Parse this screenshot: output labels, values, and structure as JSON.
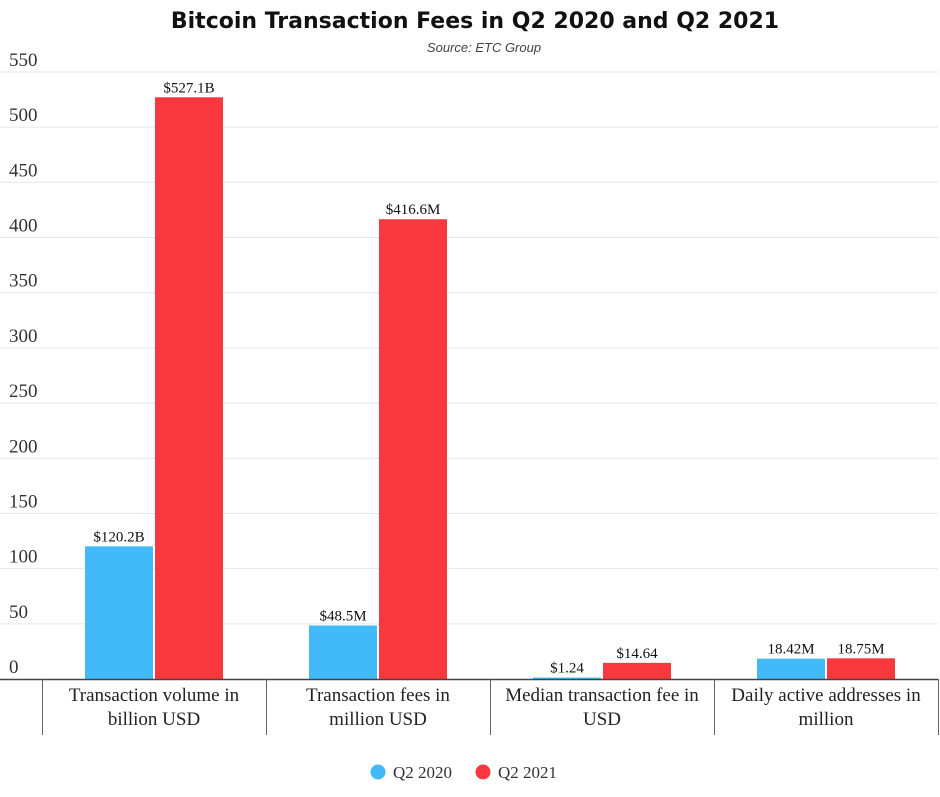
{
  "chart_data": {
    "type": "bar",
    "title": "Bitcoin Transaction Fees in Q2 2020 and Q2 2021",
    "subtitle": "Source: ETC Group",
    "categories": [
      [
        "Transaction volume in",
        "billion USD"
      ],
      [
        "Transaction fees in",
        "million USD"
      ],
      [
        "Median transaction fee in",
        "USD"
      ],
      [
        "Daily active addresses in",
        "million"
      ]
    ],
    "series": [
      {
        "name": "Q2 2020",
        "color": "#42baf8",
        "values": [
          120.2,
          48.5,
          1.24,
          18.42
        ],
        "labels": [
          "$120.2B",
          "$48.5M",
          "$1.24",
          "18.42M"
        ]
      },
      {
        "name": "Q2 2021",
        "color": "#f8383f",
        "values": [
          527.1,
          416.6,
          14.64,
          18.75
        ],
        "labels": [
          "$527.1B",
          "$416.6M",
          "$14.64",
          "18.75M"
        ]
      }
    ],
    "ylim": [
      0,
      550
    ],
    "yticks": [
      0,
      50,
      100,
      150,
      200,
      250,
      300,
      350,
      400,
      450,
      500,
      550
    ],
    "grid": true,
    "legend": "bottom-center"
  }
}
